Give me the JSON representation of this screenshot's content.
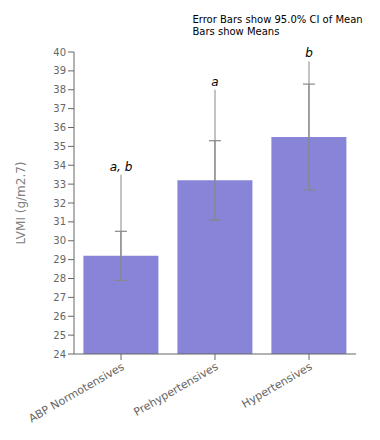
{
  "chart_data": {
    "type": "bar",
    "categories": [
      "ABP Normotensives",
      "Prehypertensives",
      "Hypertensives"
    ],
    "values": [
      29.2,
      33.2,
      35.5
    ],
    "errors": [
      1.3,
      2.1,
      2.8
    ],
    "ylabel": "LVMI (g/m2.7)",
    "ylim": [
      24,
      40
    ],
    "yticks": [
      24,
      25,
      26,
      27,
      28,
      29,
      30,
      31,
      32,
      33,
      34,
      35,
      36,
      37,
      38,
      39,
      40
    ],
    "annotation": "Error Bars show 95.0% CI of Mean\nBars show Means",
    "significance_labels": [
      "a, b",
      "a",
      "b"
    ],
    "significance_tops": [
      33.5,
      38.0,
      39.5
    ],
    "color": "#8884d8"
  }
}
